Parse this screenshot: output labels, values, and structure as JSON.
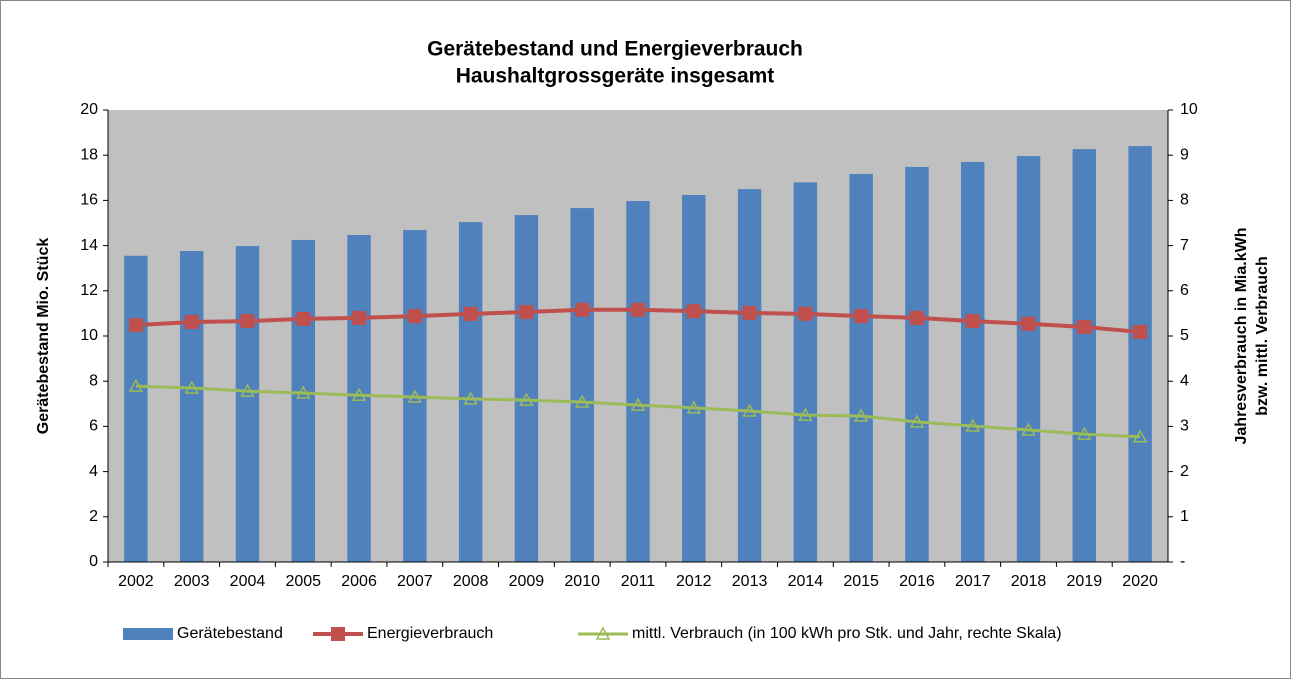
{
  "chart_data": {
    "type": "bar_line",
    "title": [
      "Gerätebestand und Energieverbrauch",
      "Haushaltgrossgeräte insgesamt"
    ],
    "ylabel": "Gerätebestand Mio. Stück",
    "y2label": [
      "Jahresverbrauch in Mia.kWh",
      "bzw. mittl. Verbrauch"
    ],
    "categories": [
      "2002",
      "2003",
      "2004",
      "2005",
      "2006",
      "2007",
      "2008",
      "2009",
      "2010",
      "2011",
      "2012",
      "2013",
      "2014",
      "2015",
      "2016",
      "2017",
      "2018",
      "2019",
      "2020"
    ],
    "series": [
      {
        "name": "Gerätebestand",
        "type": "bar",
        "color": "#4f81bd",
        "values": [
          13.55,
          13.76,
          13.98,
          14.25,
          14.47,
          14.69,
          15.04,
          15.35,
          15.66,
          15.97,
          16.24,
          16.5,
          16.8,
          17.17,
          17.48,
          17.7,
          17.96,
          18.27,
          18.4
        ]
      },
      {
        "name": "Energieverbrauch",
        "type": "line",
        "marker": "square",
        "axis": "y2",
        "color": "#c0504d",
        "values": [
          5.24,
          5.31,
          5.33,
          5.38,
          5.4,
          5.44,
          5.49,
          5.53,
          5.58,
          5.58,
          5.55,
          5.51,
          5.49,
          5.44,
          5.4,
          5.33,
          5.27,
          5.2,
          5.09
        ]
      },
      {
        "name": "mittl. Verbrauch (in 100 kWh pro Stk. und Jahr, rechte Skala)",
        "type": "line",
        "marker": "triangle",
        "axis": "y2",
        "color": "#9bbb59",
        "values": [
          3.89,
          3.85,
          3.78,
          3.74,
          3.69,
          3.65,
          3.61,
          3.58,
          3.54,
          3.47,
          3.41,
          3.34,
          3.25,
          3.23,
          3.1,
          3.01,
          2.92,
          2.83,
          2.77
        ]
      }
    ],
    "ylim": [
      0,
      20
    ],
    "yticks": [
      0,
      2,
      4,
      6,
      8,
      10,
      12,
      14,
      16,
      18,
      20
    ],
    "y2lim": [
      0,
      10
    ],
    "y2ticks": [
      {
        "value": 0,
        "label": "-"
      },
      1,
      2,
      3,
      4,
      5,
      6,
      7,
      8,
      9,
      10
    ],
    "plot_background": "#c0c0c0",
    "legend": "bottom"
  }
}
